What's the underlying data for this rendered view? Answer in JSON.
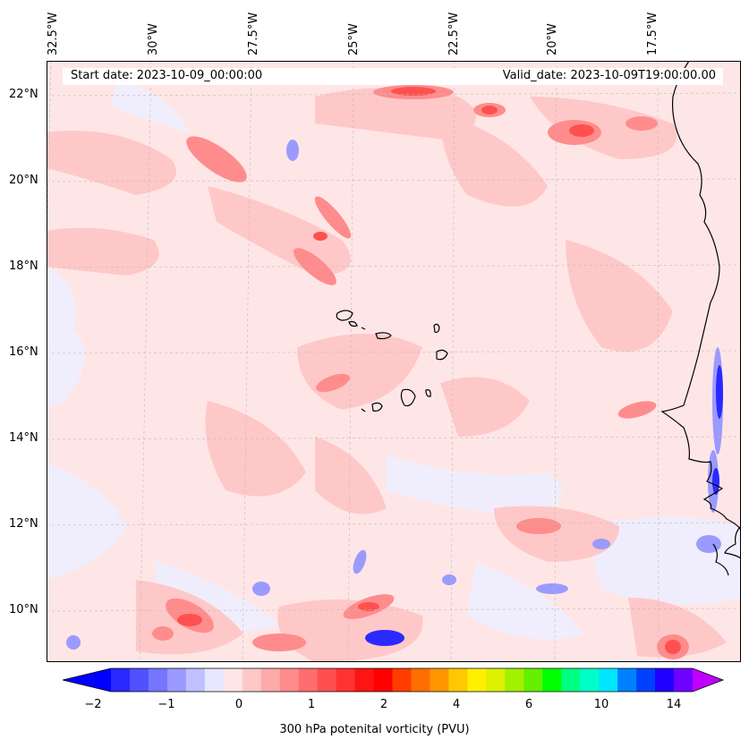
{
  "header": {
    "start_date": "Start date: 2023-10-09_00:00:00",
    "valid_date": "Valid_date: 2023-10-09T19:00:00.00"
  },
  "lon_labels": [
    "32.5°W",
    "30°W",
    "27.5°W",
    "25°W",
    "22.5°W",
    "20°W",
    "17.5°W"
  ],
  "lat_labels": [
    "22°N",
    "20°N",
    "18°N",
    "16°N",
    "14°N",
    "12°N",
    "10°N"
  ],
  "colorbar": {
    "ticks": [
      "−2",
      "−1",
      "0",
      "1",
      "2",
      "4",
      "6",
      "10",
      "14"
    ],
    "label": "300 hPa potenital vorticity (PVU)",
    "colors": [
      "#0000ff",
      "#2a2aff",
      "#5050ff",
      "#7575ff",
      "#9a9aff",
      "#c0c0ff",
      "#e6e6ff",
      "#ffe6e6",
      "#ffc8c8",
      "#ffaaaa",
      "#ff8c8c",
      "#ff6e6e",
      "#ff5050",
      "#ff3232",
      "#ff1414",
      "#ff0000",
      "#ff3c00",
      "#ff6e00",
      "#ff9600",
      "#ffc800",
      "#fff000",
      "#dcf000",
      "#a0f000",
      "#64f000",
      "#00ff00",
      "#00ff80",
      "#00ffc8",
      "#00e6ff",
      "#0080ff",
      "#0040ff",
      "#2000ff",
      "#7000ff",
      "#c000ff"
    ]
  }
}
